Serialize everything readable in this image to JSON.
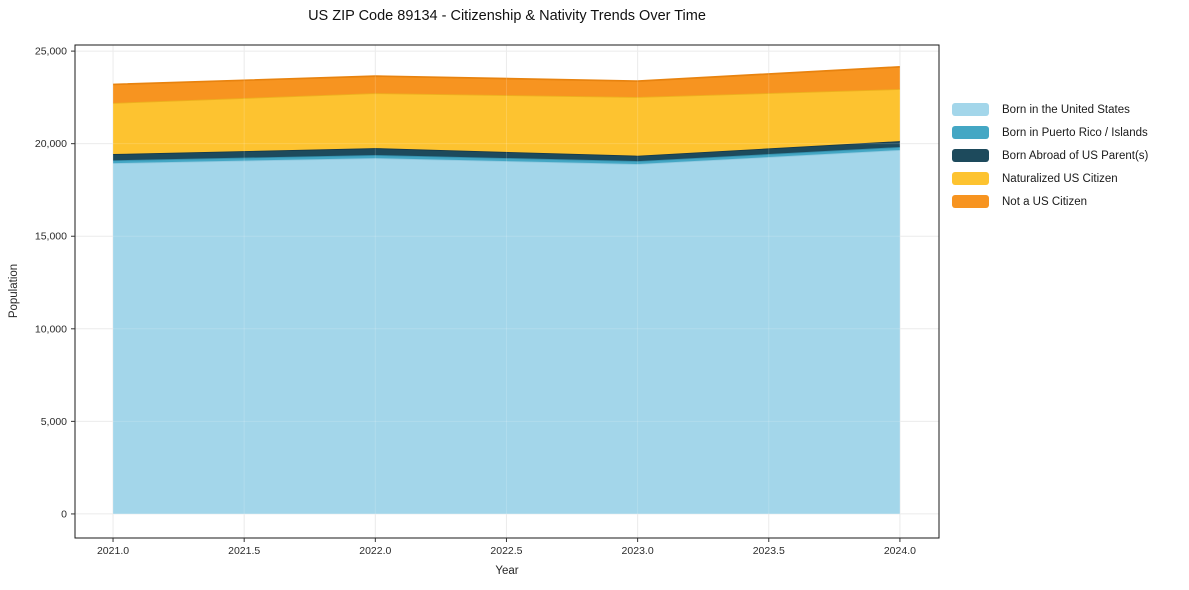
{
  "chart_data": {
    "type": "area",
    "title": "US ZIP Code 89134 - Citizenship & Nativity Trends Over Time",
    "xlabel": "Year",
    "ylabel": "Population",
    "x": [
      2021,
      2022,
      2023,
      2024
    ],
    "series": [
      {
        "name": "Born in the United States",
        "color": "#a3d6ea",
        "edge": "#8ec9e0",
        "values": [
          18950,
          19220,
          18900,
          19660
        ]
      },
      {
        "name": "Born in Puerto Rico / Islands",
        "color": "#44a7c4",
        "edge": "#338fac",
        "values": [
          150,
          170,
          160,
          160
        ]
      },
      {
        "name": "Born Abroad of US Parent(s)",
        "color": "#1d4a5c",
        "edge": "#16394a",
        "values": [
          340,
          370,
          290,
          320
        ]
      },
      {
        "name": "Naturalized US Citizen",
        "color": "#fdc330",
        "edge": "#edb01e",
        "values": [
          2760,
          2970,
          3170,
          2810
        ]
      },
      {
        "name": "Not a US Citizen",
        "color": "#f79420",
        "edge": "#e8830f",
        "values": [
          1000,
          920,
          860,
          1200
        ]
      }
    ],
    "stacked_totals": [
      23200,
      23650,
      23380,
      24150
    ],
    "xlim": [
      2020.855,
      2024.149
    ],
    "ylim": [
      -1300,
      25330
    ],
    "xticks": {
      "values": [
        2021.0,
        2021.5,
        2022.0,
        2022.5,
        2023.0,
        2023.5,
        2024.0
      ],
      "labels": [
        "2021.0",
        "2021.5",
        "2022.0",
        "2022.5",
        "2023.0",
        "2023.5",
        "2024.0"
      ]
    },
    "yticks": {
      "values": [
        0,
        5000,
        10000,
        15000,
        20000,
        25000
      ],
      "labels": [
        "0",
        "5,000",
        "10,000",
        "15,000",
        "20,000",
        "25,000"
      ]
    },
    "grid": true,
    "legend_position": "right"
  },
  "colors": {
    "background": "#ffffff",
    "grid": "#e8e8e8",
    "grid_overlay": "rgba(255,255,255,0.16)",
    "spine": "#1a1a1a",
    "tick": "#333333",
    "tick_text": "#2b2b2b"
  }
}
